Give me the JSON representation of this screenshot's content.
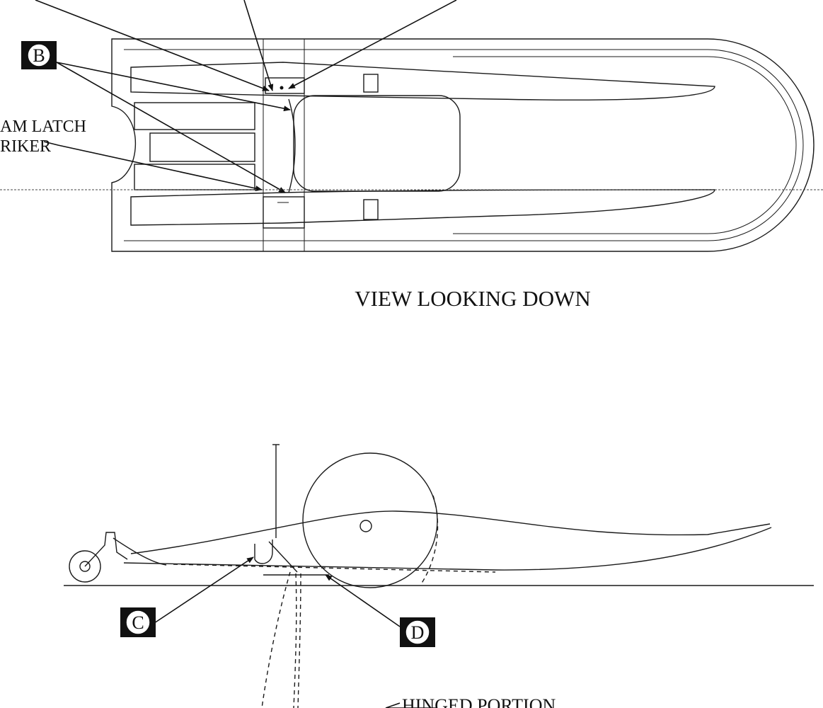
{
  "labels": {
    "cam_latch_line1": "AM LATCH",
    "cam_latch_line2": "RIKER",
    "view_title": "VIEW LOOKING DOWN",
    "hinged_portion": "HINGED PORTION"
  },
  "callouts": {
    "b": "B",
    "c": "C",
    "d": "D"
  }
}
